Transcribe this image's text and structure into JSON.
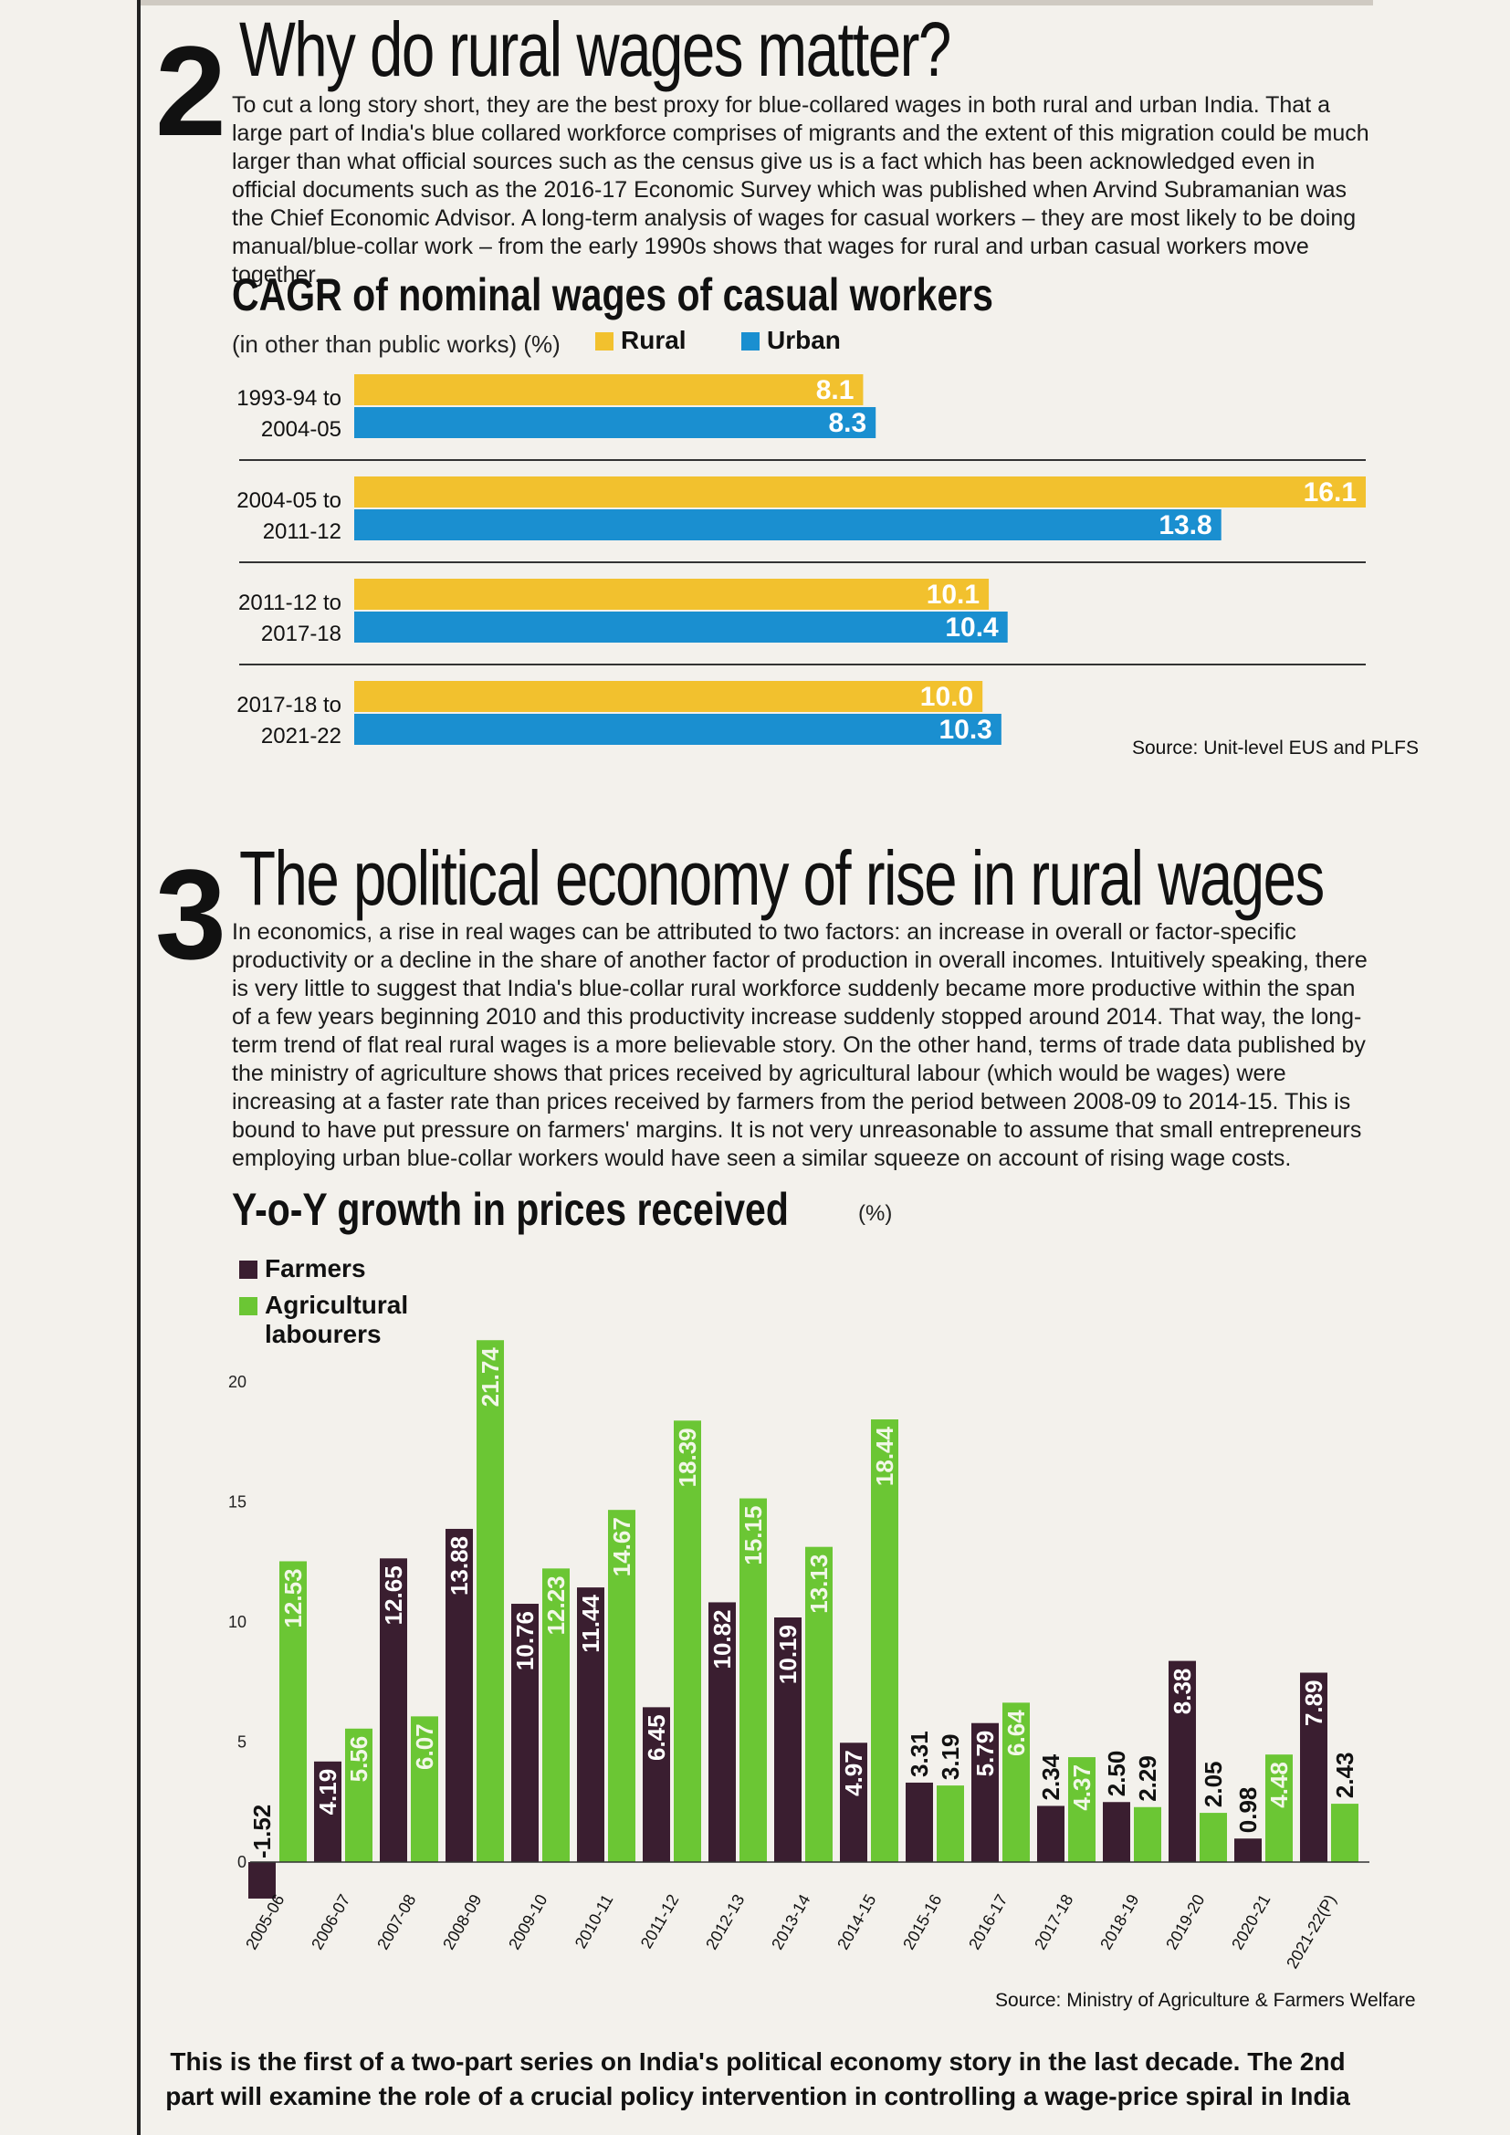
{
  "section2": {
    "number": "2",
    "title": "Why do rural wages matter?",
    "body": "To cut a long story short, they are the best proxy for blue-collared wages in both rural and urban India. That a large part of India's blue collared workforce comprises of migrants and the extent of this migration could be much larger than what official sources such as the census give us is a fact which has been acknowledged even in official documents such as the 2016-17 Economic Survey which was published when Arvind Subramanian was the Chief Economic Advisor. A long-term analysis of wages for casual workers – they are most likely to be doing manual/blue-collar work – from the early 1990s shows that wages for rural and urban casual workers move together."
  },
  "section3": {
    "number": "3",
    "title": "The political economy of rise in rural wages",
    "body": "In economics, a rise in real wages can be attributed to two factors: an increase in overall or factor-specific productivity or a decline in the share of another factor of production in overall incomes. Intuitively speaking, there is very little to suggest that India's blue-collar rural workforce suddenly became more productive within the span of a few years beginning 2010 and this productivity increase suddenly stopped around 2014. That way, the long-term trend of flat real rural wages is a more believable story. On the other hand, terms of trade data published by the ministry of agriculture shows that prices received by agricultural labour (which would be wages) were increasing at a faster rate than prices received by farmers from the period between 2008-09 to 2014-15. This is bound to have put pressure on farmers' margins. It is not very unreasonable to assume that small entrepreneurs employing urban blue-collar workers would have seen a similar squeeze on account of rising wage costs."
  },
  "footer": "This is the first of a two-part series on India's political economy story in the last decade. The 2nd part will examine the role of a crucial policy intervention in controlling a wage-price spiral in India",
  "chart_data": [
    {
      "type": "bar",
      "orientation": "horizontal",
      "title": "CAGR of nominal wages of casual workers",
      "subtitle": "(in other than public works) (%)",
      "categories": [
        "1993-94 to 2004-05",
        "2004-05 to 2011-12",
        "2011-12 to 2017-18",
        "2017-18 to 2021-22"
      ],
      "series": [
        {
          "name": "Rural",
          "color": "#f2c12e",
          "values": [
            8.1,
            16.1,
            10.1,
            10.0
          ]
        },
        {
          "name": "Urban",
          "color": "#1a8fd0",
          "values": [
            8.3,
            13.8,
            10.4,
            10.3
          ]
        }
      ],
      "value_labels": {
        "Rural": [
          "8.1",
          "16.1",
          "10.1",
          "10.0"
        ],
        "Urban": [
          "8.3",
          "13.8",
          "10.4",
          "10.3"
        ]
      },
      "legend_position": "top",
      "source": "Source: Unit-level EUS and PLFS"
    },
    {
      "type": "bar",
      "orientation": "vertical",
      "title": "Y-o-Y growth in prices received",
      "unit": "(%)",
      "categories": [
        "2005-06",
        "2006-07",
        "2007-08",
        "2008-09",
        "2009-10",
        "2010-11",
        "2011-12",
        "2012-13",
        "2013-14",
        "2014-15",
        "2015-16",
        "2016-17",
        "2017-18",
        "2018-19",
        "2019-20",
        "2020-21",
        "2021-22(P)"
      ],
      "series": [
        {
          "name": "Farmers",
          "color": "#3a1e30",
          "values": [
            -1.52,
            4.19,
            12.65,
            13.88,
            10.76,
            11.44,
            6.45,
            10.82,
            10.19,
            4.97,
            3.31,
            5.79,
            2.34,
            2.5,
            8.38,
            0.98,
            7.89
          ],
          "labels": [
            "-1.52",
            "4.19",
            "12.65",
            "13.88",
            "10.76",
            "11.44",
            "6.45",
            "10.82",
            "10.19",
            "4.97",
            "3.31",
            "5.79",
            "2.34",
            "2.50",
            "8.38",
            "0.98",
            "7.89"
          ]
        },
        {
          "name": "Agricultural labourers",
          "color": "#6bc634",
          "values": [
            12.53,
            5.56,
            6.07,
            21.74,
            12.23,
            14.67,
            18.39,
            15.15,
            13.13,
            18.44,
            3.19,
            6.64,
            4.37,
            2.29,
            2.05,
            4.48,
            2.43
          ],
          "labels": [
            "12.53",
            "5.56",
            "6.07",
            "21.74",
            "12.23",
            "14.67",
            "18.39",
            "15.15",
            "13.13",
            "18.44",
            "3.19",
            "6.64",
            "4.37",
            "2.29",
            "2.05",
            "4.48",
            "2.43"
          ]
        }
      ],
      "legend": {
        "farmers": "Farmers",
        "labourers_line1": "Agricultural",
        "labourers_line2": "labourers"
      },
      "y_ticks": [
        "0",
        "5",
        "10",
        "15",
        "20"
      ],
      "ylim": [
        -2,
        22
      ],
      "source": "Source: Ministry of Agriculture & Farmers Welfare"
    }
  ]
}
